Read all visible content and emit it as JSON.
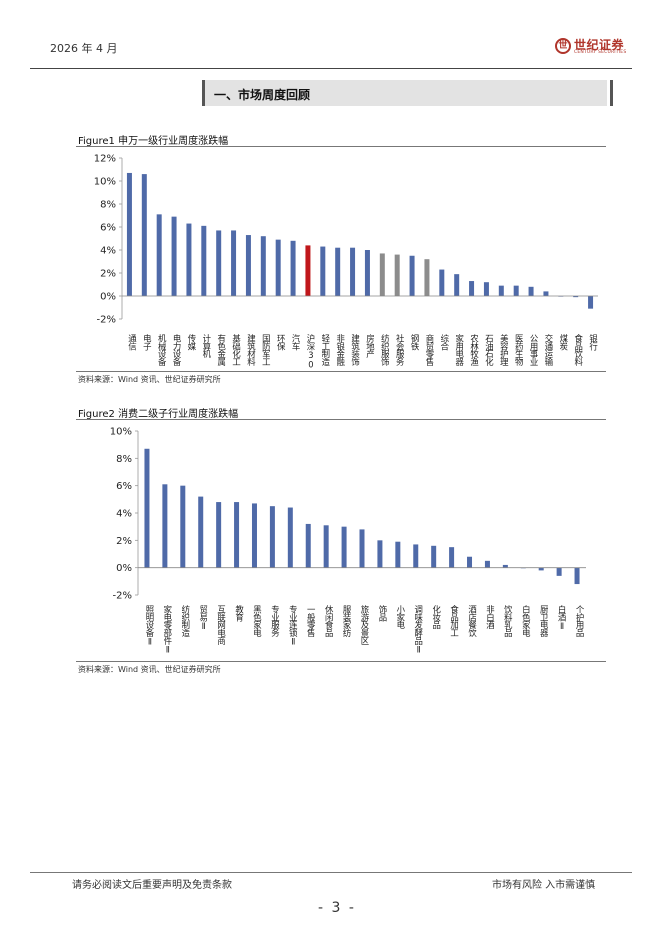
{
  "header": {
    "date": "2026 年 4 月",
    "logo_cn": "世纪证券",
    "logo_en": "CENTURY SECURITIES",
    "logo_mark": "世"
  },
  "section": {
    "title": "一、市场周度回顾"
  },
  "figure1": {
    "title": "Figure1 申万一级行业周度涨跌幅",
    "source": "资料来源：Wind 资讯、世纪证券研究所"
  },
  "figure2": {
    "title": "Figure2 消费二级子行业周度涨跌幅",
    "source": "资料来源：Wind 资讯、世纪证券研究所"
  },
  "chart_data": [
    {
      "type": "bar",
      "title": "Figure1 申万一级行业周度涨跌幅",
      "ylim": [
        -2,
        12
      ],
      "yticks": [
        "12%",
        "10%",
        "8%",
        "6%",
        "4%",
        "2%",
        "0%",
        "-2%"
      ],
      "categories": [
        "通信",
        "电子",
        "机械设备",
        "电力设备",
        "传媒",
        "计算机",
        "有色金属",
        "基础化工",
        "建筑材料",
        "国防军工",
        "环保",
        "汽车",
        "沪深300",
        "轻工制造",
        "非银金融",
        "建筑装饰",
        "房地产",
        "纺织服饰",
        "社会服务",
        "钢铁",
        "商贸零售",
        "综合",
        "家用电器",
        "农林牧渔",
        "石油石化",
        "美容护理",
        "医药生物",
        "公用事业",
        "交通运输",
        "煤炭",
        "食品饮料",
        "银行"
      ],
      "values": [
        10.7,
        10.6,
        7.1,
        6.9,
        6.3,
        6.1,
        5.7,
        5.7,
        5.3,
        5.2,
        4.9,
        4.8,
        4.4,
        4.3,
        4.2,
        4.2,
        4.0,
        3.7,
        3.6,
        3.5,
        3.2,
        2.3,
        1.9,
        1.3,
        1.2,
        0.9,
        0.9,
        0.8,
        0.4,
        0.0,
        -0.1,
        -1.1
      ],
      "colors": {
        "default": "#4f6aa8",
        "highlight": "#c0171b",
        "gray": "#8c8c8c"
      },
      "highlight_index": [
        12
      ],
      "gray_index": [
        17,
        18,
        20
      ],
      "grid": false
    },
    {
      "type": "bar",
      "title": "Figure2 消费二级子行业周度涨跌幅",
      "ylim": [
        -2,
        10
      ],
      "yticks": [
        "10%",
        "8%",
        "6%",
        "4%",
        "2%",
        "0%",
        "-2%"
      ],
      "categories": [
        "照明设备Ⅱ",
        "家电零部件Ⅱ",
        "纺织制造",
        "贸易Ⅱ",
        "互联网电商",
        "教育",
        "黑色家电",
        "专业服务",
        "专业连锁Ⅱ",
        "一般零售",
        "休闲食品",
        "服装家纺",
        "旅游及景区",
        "饰品",
        "小家电",
        "调味发酵品Ⅱ",
        "化妆品",
        "食品加工",
        "酒店餐饮",
        "非白酒",
        "饮料乳品",
        "白色家电",
        "厨卫电器",
        "白酒Ⅱ",
        "个护用品"
      ],
      "values": [
        8.7,
        6.1,
        6.0,
        5.2,
        4.8,
        4.8,
        4.7,
        4.5,
        4.4,
        3.2,
        3.1,
        3.0,
        2.8,
        2.0,
        1.9,
        1.7,
        1.6,
        1.5,
        0.8,
        0.5,
        0.2,
        0.0,
        -0.2,
        -0.6,
        -1.2
      ],
      "colors": {
        "default": "#4f6aa8"
      },
      "grid": false
    }
  ],
  "footer": {
    "disclaimer": "请务必阅读文后重要声明及免责条款",
    "risk": "市场有风险 入市需谨慎",
    "page": "- 3 -"
  }
}
